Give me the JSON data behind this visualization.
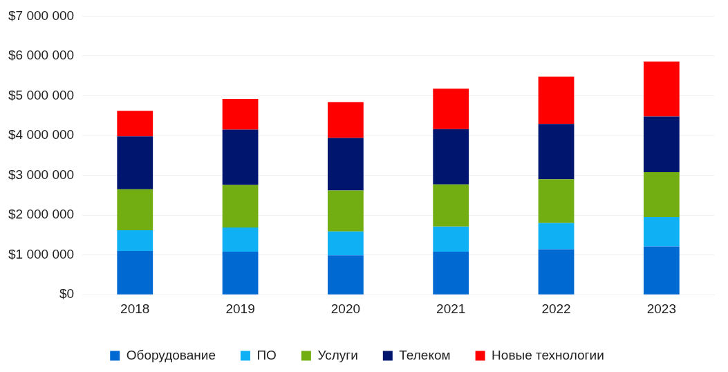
{
  "chart_data": {
    "type": "bar",
    "stacked": true,
    "categories": [
      "2018",
      "2019",
      "2020",
      "2021",
      "2022",
      "2023"
    ],
    "series": [
      {
        "name": "Оборудование",
        "color": "#0069d2",
        "values": [
          1100000,
          1080000,
          990000,
          1080000,
          1140000,
          1210000
        ]
      },
      {
        "name": "ПО",
        "color": "#10b0f5",
        "values": [
          520000,
          610000,
          600000,
          630000,
          660000,
          740000
        ]
      },
      {
        "name": "Услуги",
        "color": "#72ad12",
        "values": [
          1030000,
          1070000,
          1030000,
          1060000,
          1100000,
          1130000
        ]
      },
      {
        "name": "Телеком",
        "color": "#00156e",
        "values": [
          1330000,
          1390000,
          1320000,
          1390000,
          1390000,
          1400000
        ]
      },
      {
        "name": "Новые технологии",
        "color": "#ff0000",
        "values": [
          640000,
          770000,
          900000,
          1020000,
          1190000,
          1380000
        ]
      }
    ],
    "ylim": [
      0,
      7000000
    ],
    "yticks": [
      {
        "value": 0,
        "label": "$0"
      },
      {
        "value": 1000000,
        "label": "$1 000 000"
      },
      {
        "value": 2000000,
        "label": "$2 000 000"
      },
      {
        "value": 3000000,
        "label": "$3 000 000"
      },
      {
        "value": 4000000,
        "label": "$4 000 000"
      },
      {
        "value": 5000000,
        "label": "$5 000 000"
      },
      {
        "value": 6000000,
        "label": "$6 000 000"
      },
      {
        "value": 7000000,
        "label": "$7 000 000"
      }
    ],
    "grid": "y",
    "legend": "bottom"
  }
}
